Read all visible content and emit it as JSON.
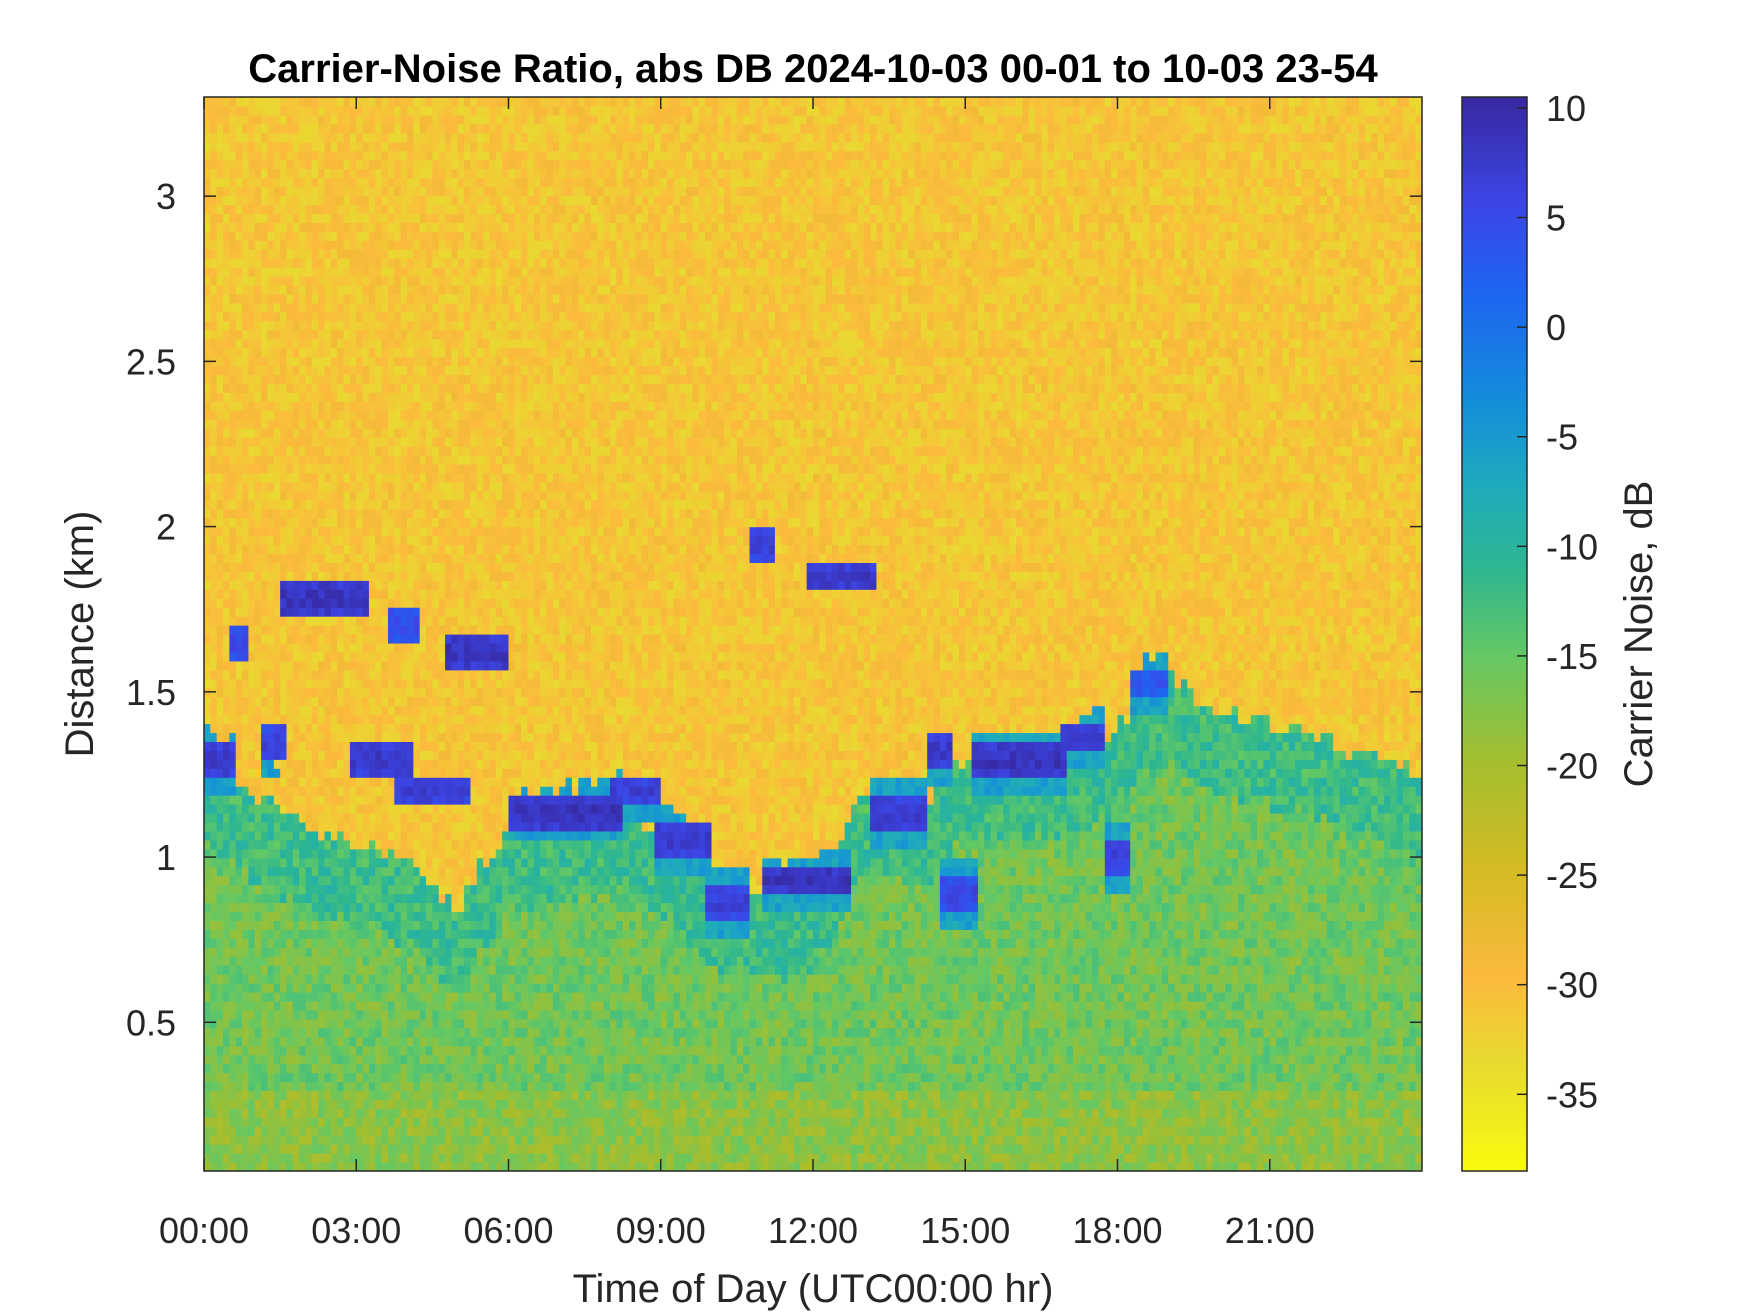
{
  "chart_data": {
    "type": "heatmap",
    "title": "Carrier-Noise Ratio, abs DB 2024-10-03 00-01 to 10-03 23-54",
    "xlabel": "Time of Day (UTC00:00 hr)",
    "ylabel": "Distance (km)",
    "colorbar_label": "Carrier Noise, dB",
    "x_unit": "hours (UTC)",
    "xlim": [
      0,
      24
    ],
    "ylim": [
      0.05,
      3.3
    ],
    "clim": [
      -38.5,
      10.5
    ],
    "colormap": "parula",
    "x_ticks": [
      0,
      3,
      6,
      9,
      12,
      15,
      18,
      21
    ],
    "x_tick_labels": [
      "00:00",
      "03:00",
      "06:00",
      "09:00",
      "12:00",
      "15:00",
      "18:00",
      "21:00"
    ],
    "y_ticks": [
      0.5,
      1,
      1.5,
      2,
      2.5,
      3
    ],
    "y_tick_labels": [
      "0.5",
      "1",
      "1.5",
      "2",
      "2.5",
      "3"
    ],
    "colorbar_ticks": [
      10,
      5,
      0,
      -5,
      -10,
      -15,
      -20,
      -25,
      -30,
      -35
    ],
    "colorbar_tick_labels": [
      "10",
      "5",
      "0",
      "-5",
      "-10",
      "-15",
      "-20",
      "-25",
      "-30",
      "-35"
    ],
    "background_value_db": -31,
    "boundary_layer_top_km": [
      [
        0,
        1.3
      ],
      [
        1,
        1.2
      ],
      [
        2,
        1.1
      ],
      [
        3,
        1.05
      ],
      [
        4,
        1.0
      ],
      [
        5,
        0.85
      ],
      [
        6,
        1.1
      ],
      [
        7,
        1.1
      ],
      [
        8,
        1.15
      ],
      [
        9,
        1.1
      ],
      [
        10,
        0.9
      ],
      [
        11,
        0.9
      ],
      [
        12,
        0.9
      ],
      [
        13,
        1.2
      ],
      [
        14,
        1.15
      ],
      [
        15,
        1.3
      ],
      [
        16,
        1.3
      ],
      [
        17,
        1.3
      ],
      [
        18,
        1.4
      ],
      [
        19,
        1.55
      ],
      [
        20,
        1.45
      ],
      [
        21,
        1.4
      ],
      [
        22,
        1.35
      ],
      [
        23,
        1.3
      ],
      [
        24,
        1.25
      ]
    ],
    "cloud_layers": [
      {
        "t_start": 0.0,
        "t_end": 0.6,
        "height_km": 1.3,
        "value_db": 8
      },
      {
        "t_start": 0.5,
        "t_end": 0.9,
        "height_km": 1.65,
        "value_db": 6
      },
      {
        "t_start": 1.1,
        "t_end": 1.6,
        "height_km": 1.35,
        "value_db": 7
      },
      {
        "t_start": 1.5,
        "t_end": 3.2,
        "height_km": 1.78,
        "value_db": 9
      },
      {
        "t_start": 2.9,
        "t_end": 4.1,
        "height_km": 1.3,
        "value_db": 8
      },
      {
        "t_start": 3.6,
        "t_end": 4.3,
        "height_km": 1.7,
        "value_db": 5
      },
      {
        "t_start": 3.8,
        "t_end": 5.2,
        "height_km": 1.2,
        "value_db": 7
      },
      {
        "t_start": 4.8,
        "t_end": 6.0,
        "height_km": 1.62,
        "value_db": 9
      },
      {
        "t_start": 6.0,
        "t_end": 8.3,
        "height_km": 1.14,
        "value_db": 9
      },
      {
        "t_start": 8.0,
        "t_end": 9.0,
        "height_km": 1.2,
        "value_db": 7
      },
      {
        "t_start": 8.9,
        "t_end": 10.0,
        "height_km": 1.05,
        "value_db": 8
      },
      {
        "t_start": 9.9,
        "t_end": 10.8,
        "height_km": 0.86,
        "value_db": 7
      },
      {
        "t_start": 10.7,
        "t_end": 11.3,
        "height_km": 1.95,
        "value_db": 7
      },
      {
        "t_start": 11.0,
        "t_end": 12.8,
        "height_km": 0.93,
        "value_db": 9
      },
      {
        "t_start": 11.9,
        "t_end": 13.2,
        "height_km": 1.85,
        "value_db": 8
      },
      {
        "t_start": 13.1,
        "t_end": 14.3,
        "height_km": 1.13,
        "value_db": 8
      },
      {
        "t_start": 14.2,
        "t_end": 14.8,
        "height_km": 1.32,
        "value_db": 8
      },
      {
        "t_start": 14.5,
        "t_end": 15.2,
        "height_km": 0.89,
        "value_db": 6
      },
      {
        "t_start": 15.1,
        "t_end": 17.0,
        "height_km": 1.29,
        "value_db": 9
      },
      {
        "t_start": 16.9,
        "t_end": 17.8,
        "height_km": 1.36,
        "value_db": 7
      },
      {
        "t_start": 17.8,
        "t_end": 18.3,
        "height_km": 1.0,
        "value_db": 7
      },
      {
        "t_start": 18.3,
        "t_end": 19.0,
        "height_km": 1.53,
        "value_db": 4
      }
    ]
  }
}
